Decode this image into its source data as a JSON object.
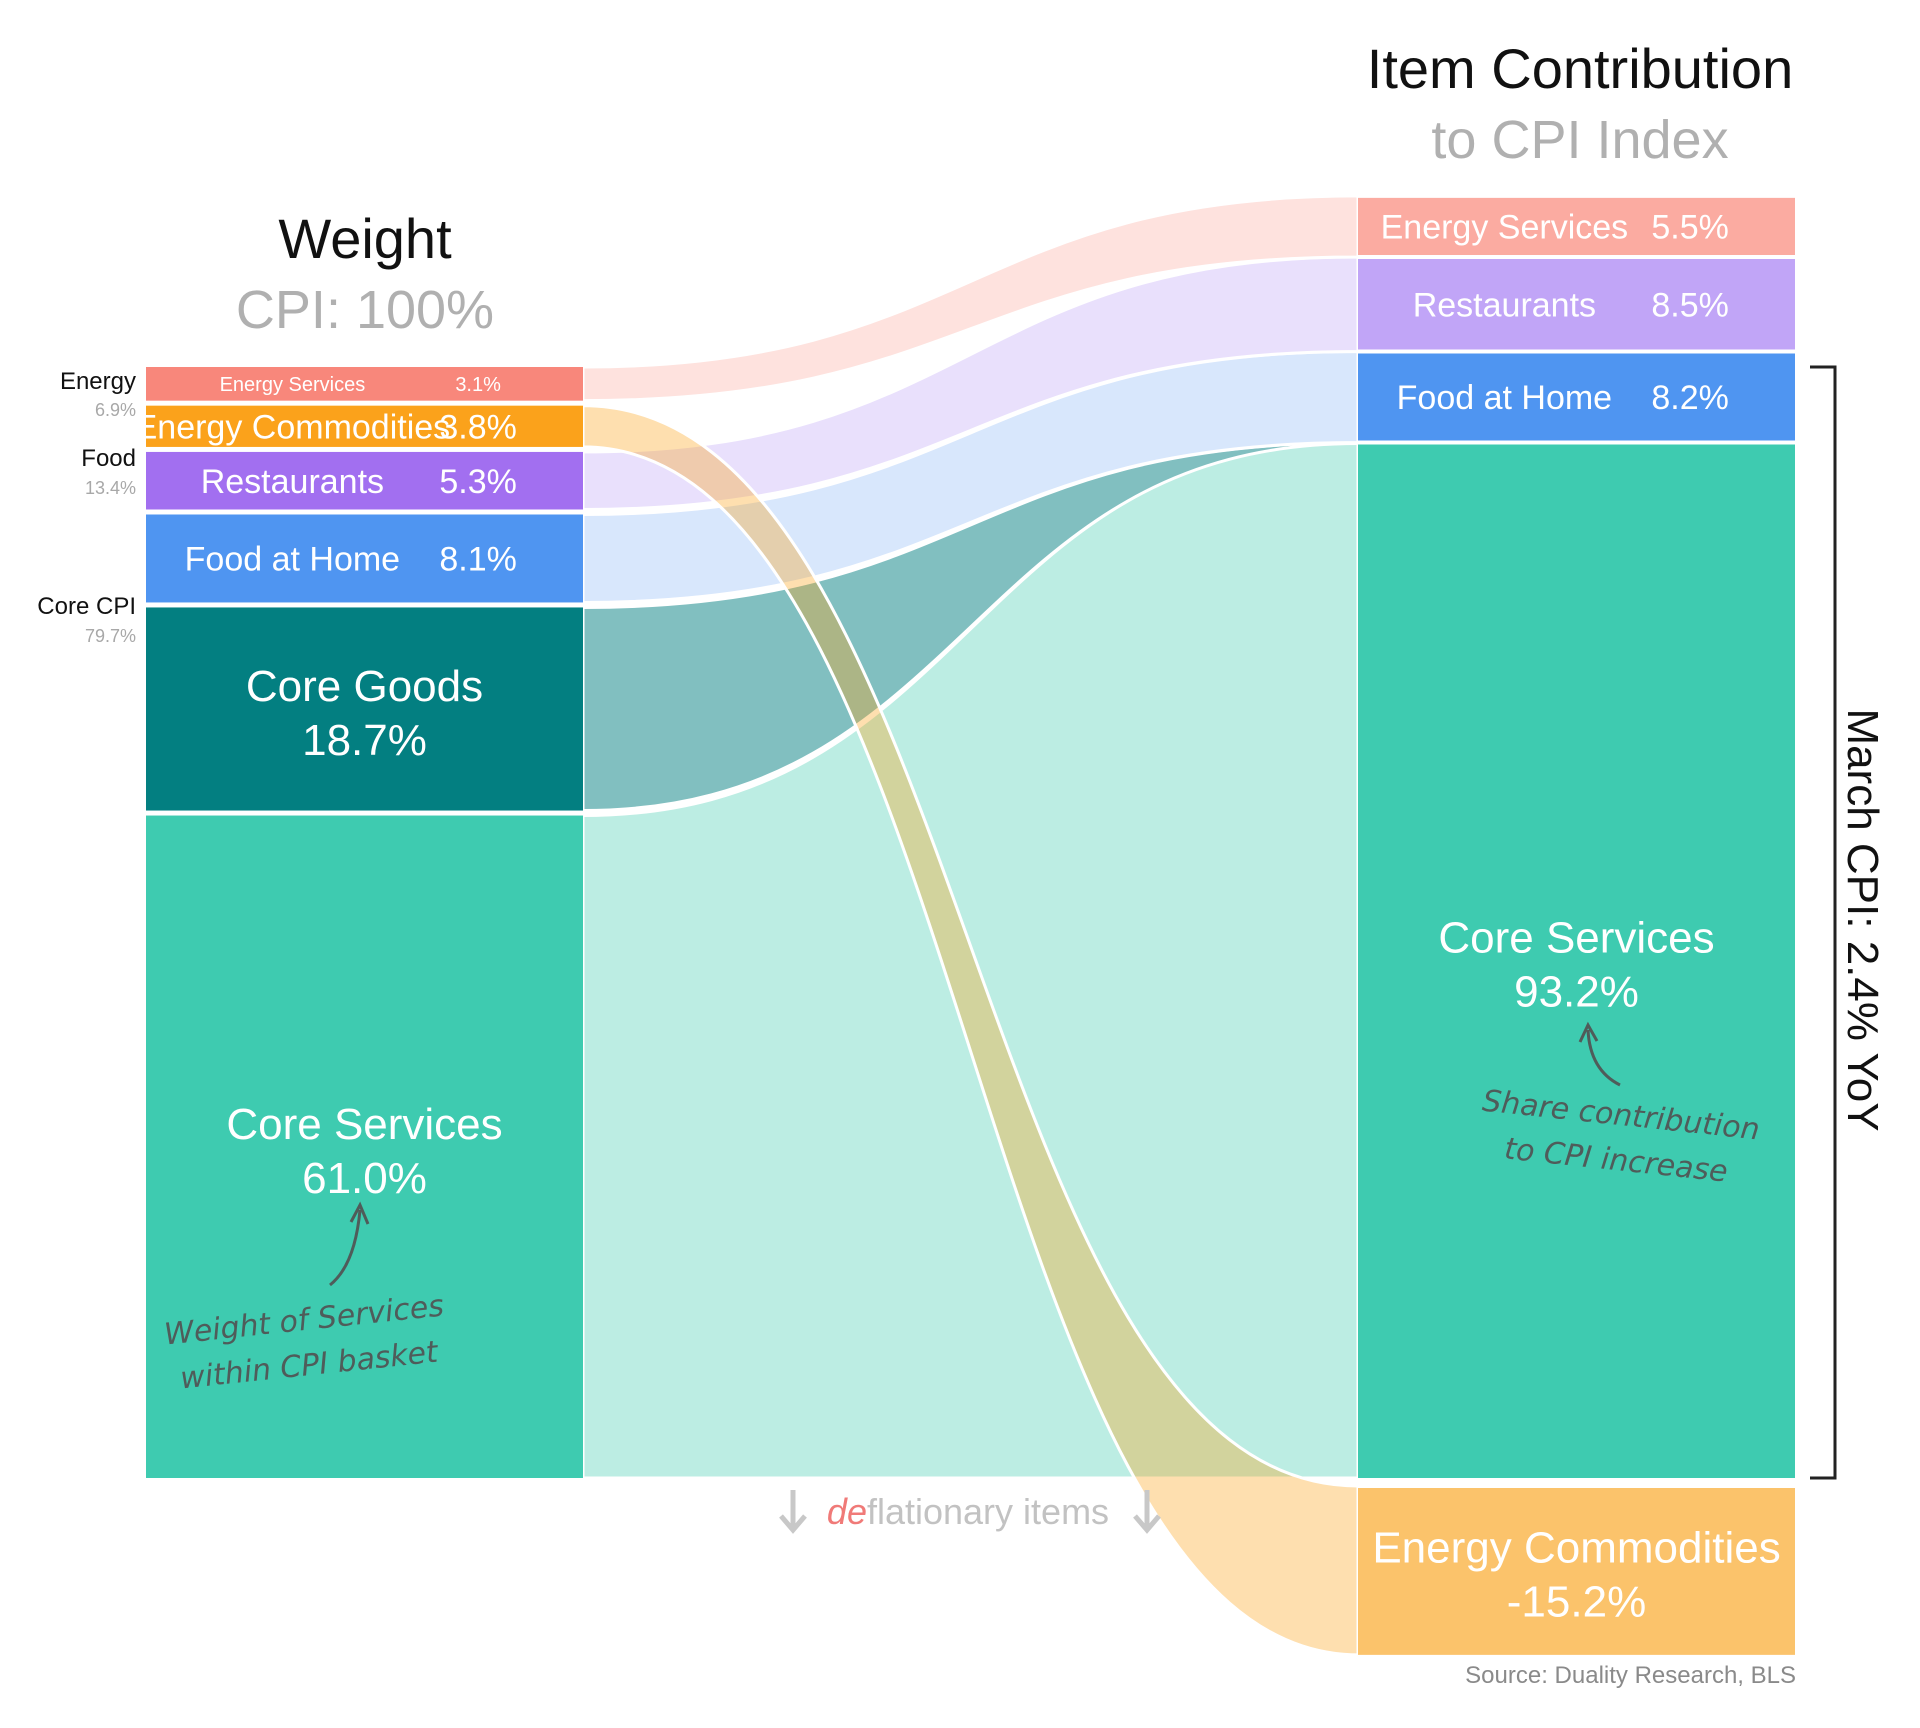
{
  "titles": {
    "left_title": "Weight",
    "left_subtitle": "CPI: 100%",
    "right_title": "Item Contribution",
    "right_subtitle": "to CPI Index"
  },
  "groups": [
    {
      "name": "Energy",
      "pct": "6.9%"
    },
    {
      "name": "Food",
      "pct": "13.4%"
    },
    {
      "name": "Core CPI",
      "pct": "79.7%"
    }
  ],
  "chart_data": {
    "type": "sankey",
    "title": "Item Contribution to CPI Index",
    "left_axis": "Weight — CPI: 100%",
    "right_axis": "Item Contribution to CPI Index — March CPI: 2.4% YoY",
    "nodes_left": [
      {
        "id": "energy_services",
        "label": "Energy Services",
        "value": 3.1,
        "value_label": "3.1%",
        "color": "#f8877b"
      },
      {
        "id": "energy_commodities",
        "label": "Energy Commodities",
        "value": 3.8,
        "value_label": "3.8%",
        "color": "#fba21b"
      },
      {
        "id": "restaurants",
        "label": "Restaurants",
        "value": 5.3,
        "value_label": "5.3%",
        "color": "#a26ff0"
      },
      {
        "id": "food_at_home",
        "label": "Food at Home",
        "value": 8.1,
        "value_label": "8.1%",
        "color": "#4f95f1"
      },
      {
        "id": "core_goods",
        "label": "Core Goods",
        "value": 18.7,
        "value_label": "18.7%",
        "color": "#037f81"
      },
      {
        "id": "core_services",
        "label": "Core Services",
        "value": 61.0,
        "value_label": "61.0%",
        "color": "#3ecbb0"
      }
    ],
    "nodes_right": [
      {
        "id": "energy_services",
        "label": "Energy Services",
        "value": 5.5,
        "value_label": "5.5%",
        "color": "#fbaba1"
      },
      {
        "id": "restaurants",
        "label": "Restaurants",
        "value": 8.5,
        "value_label": "8.5%",
        "color": "#c1a5f7"
      },
      {
        "id": "food_at_home",
        "label": "Food at Home",
        "value": 8.2,
        "value_label": "8.2%",
        "color": "#4f95f1"
      },
      {
        "id": "core_services",
        "label": "Core Services",
        "value": 93.2,
        "value_label": "93.2%",
        "color": "#3ecbb0"
      },
      {
        "id": "energy_commodities",
        "label": "Energy Commodities",
        "value": -15.2,
        "value_label": "-15.2%",
        "color": "#fbc36b"
      }
    ],
    "flows": [
      {
        "from": "energy_services",
        "to": "energy_services",
        "color": "#fbaba1"
      },
      {
        "from": "restaurants",
        "to": "restaurants",
        "color": "#c1a5f7"
      },
      {
        "from": "food_at_home",
        "to": "food_at_home",
        "color": "#8fb9f5"
      },
      {
        "from": "core_services",
        "to": "core_services",
        "color": "#3ecbb0"
      },
      {
        "from": "core_goods",
        "to": "core_services",
        "color": "#037f81"
      },
      {
        "from": "energy_commodities",
        "to": "energy_commodities",
        "color": "#fba21b"
      }
    ],
    "bracket_label": "March CPI: 2.4% YoY"
  },
  "annotations": {
    "left_line1": "Weight of Services",
    "left_line2": "within CPI basket",
    "right_line1": "Share contribution",
    "right_line2": "to CPI increase"
  },
  "deflationary": {
    "prefix": "de",
    "rest": "flationary items"
  },
  "source": "Source: Duality Research, BLS"
}
